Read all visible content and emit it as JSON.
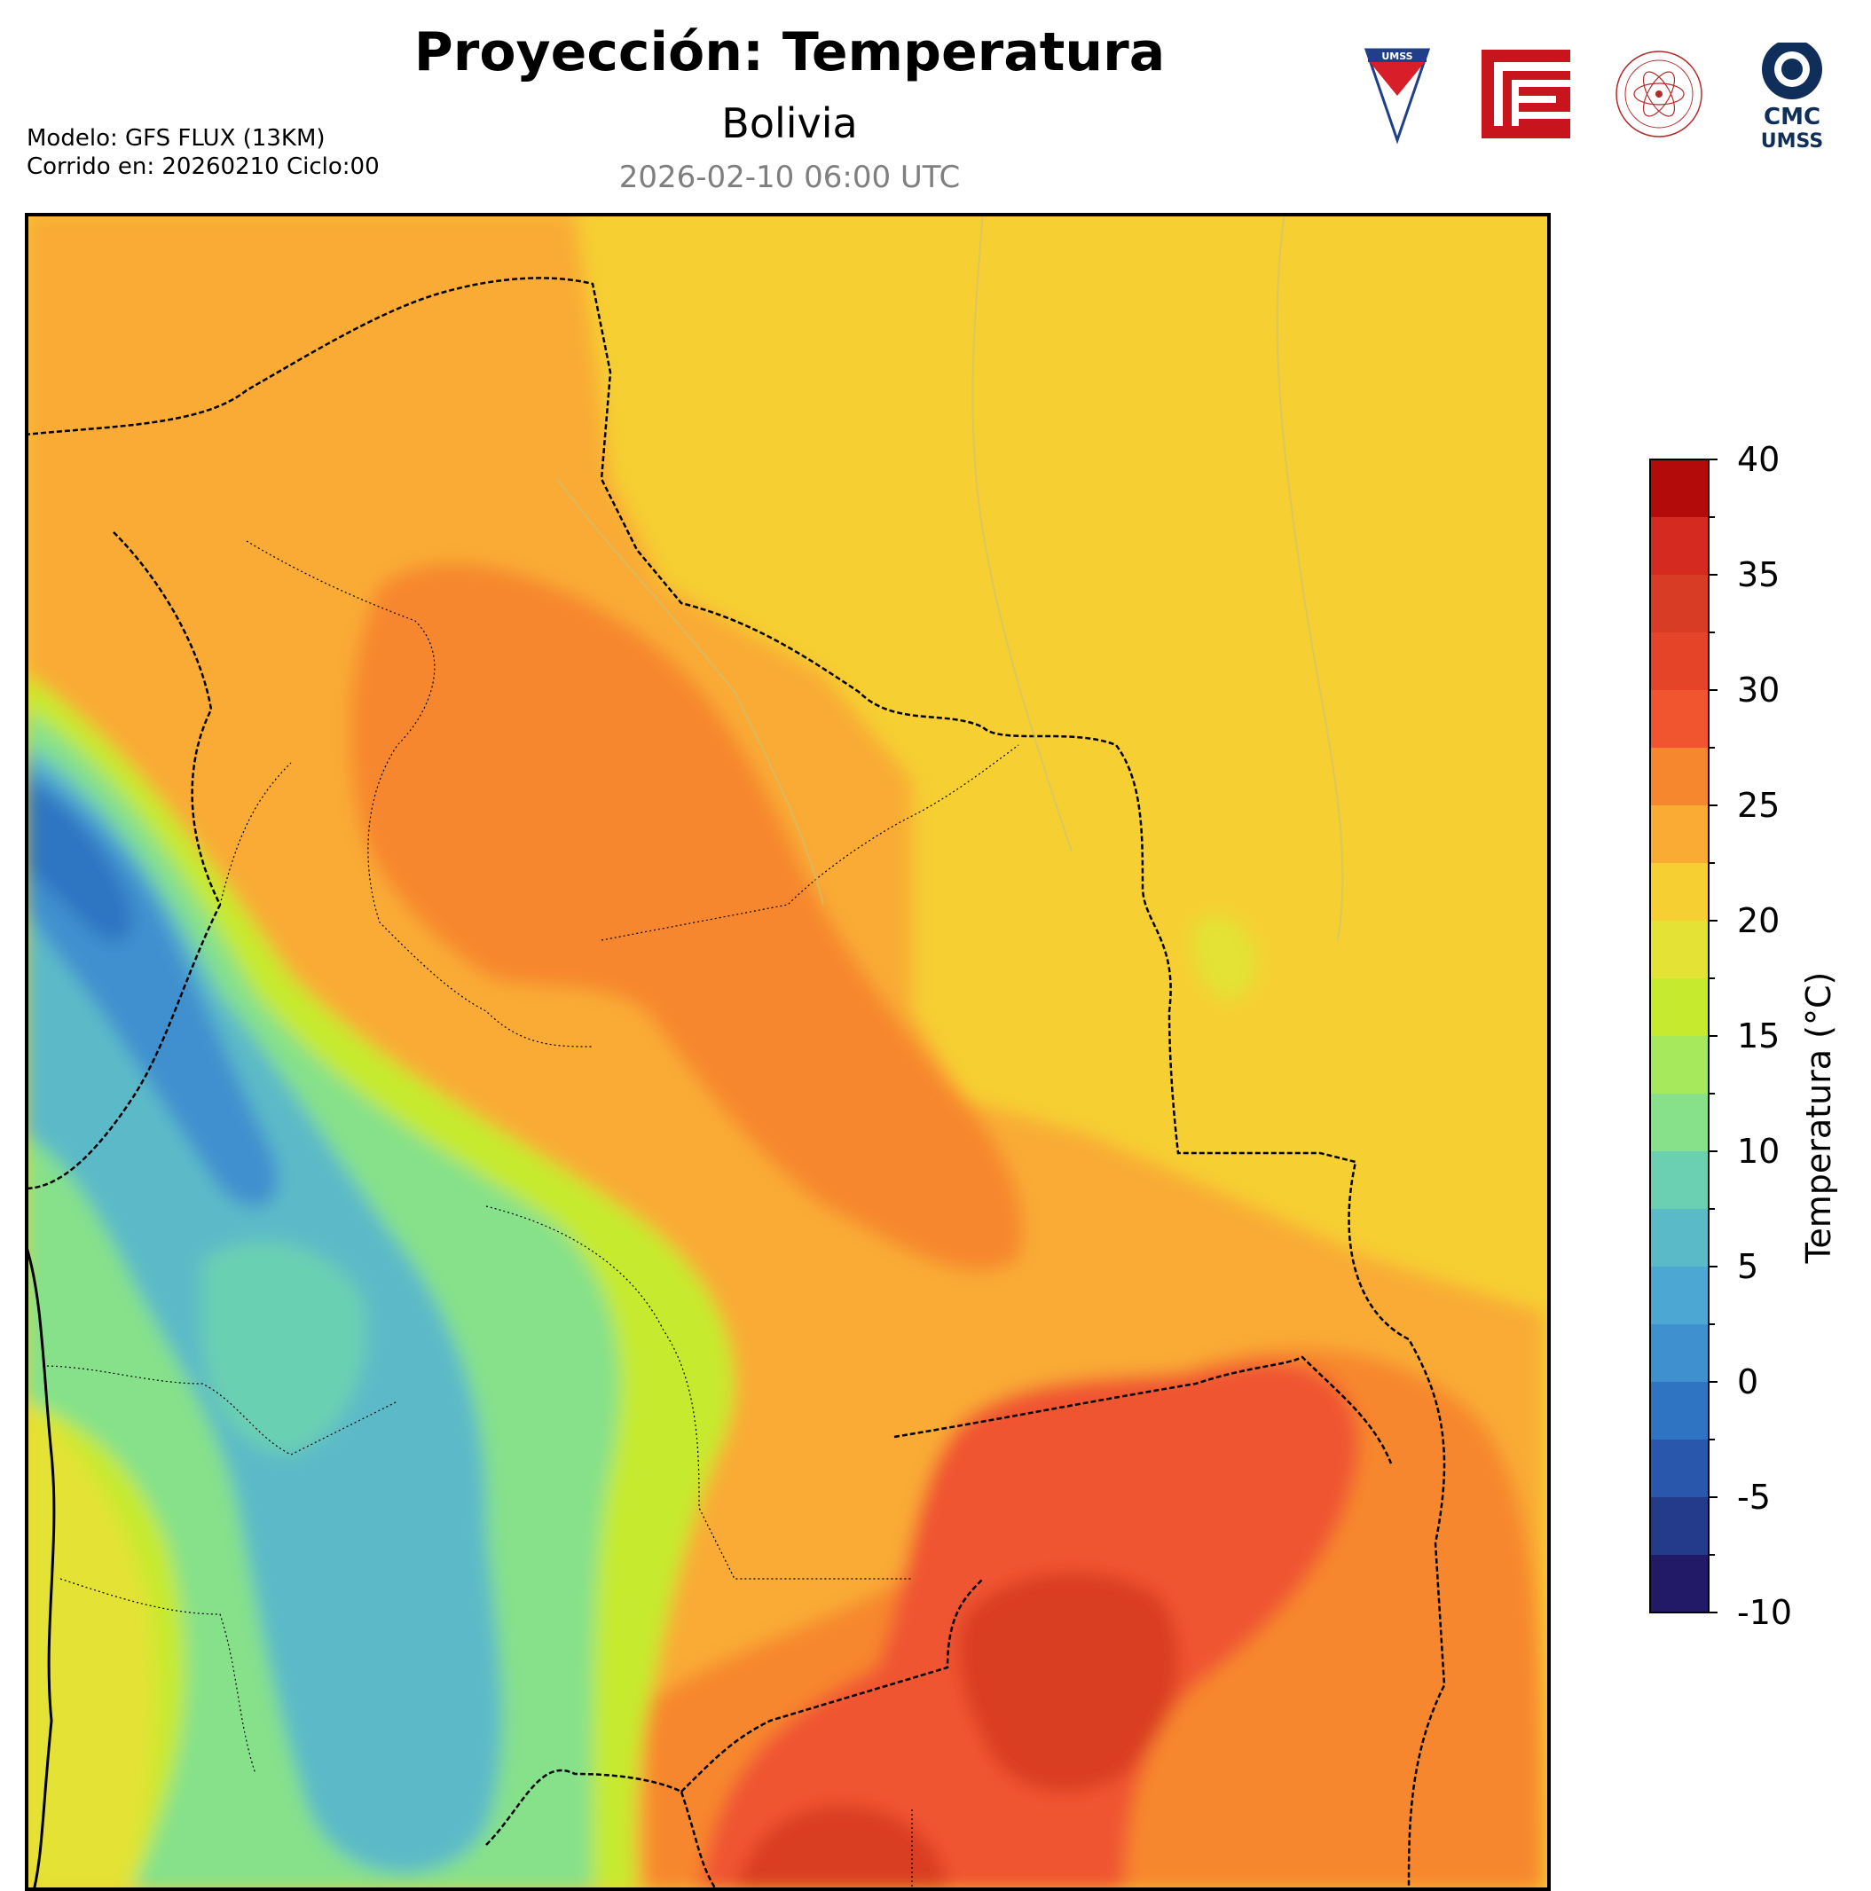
{
  "header": {
    "title": "Proyección: Temperatura",
    "region": "Bolivia",
    "valid_time": "2026-02-10 06:00 UTC",
    "model_line": "Modelo: GFS FLUX (13KM)",
    "run_line": "Corrido en: 20260210 Ciclo:00"
  },
  "logos": {
    "umss_shield_text": "UMSS",
    "cmc_text": "CMC",
    "cmc_sub": "UMSS"
  },
  "colorbar": {
    "label": "Temperatura (°C)",
    "ticks": [
      "40",
      "35",
      "30",
      "25",
      "20",
      "15",
      "10",
      "5",
      "0",
      "-5",
      "-10"
    ],
    "levels": [
      {
        "from": 37.5,
        "color": "#b30a0a"
      },
      {
        "from": 35,
        "color": "#d42a20"
      },
      {
        "from": 32.5,
        "color": "#d93c24"
      },
      {
        "from": 30,
        "color": "#e64428"
      },
      {
        "from": 27.5,
        "color": "#f05530"
      },
      {
        "from": 25,
        "color": "#f7872f"
      },
      {
        "from": 22.5,
        "color": "#f9ab34"
      },
      {
        "from": 20,
        "color": "#f6cf33"
      },
      {
        "from": 17.5,
        "color": "#e3e235"
      },
      {
        "from": 15,
        "color": "#c6ea2e"
      },
      {
        "from": 12.5,
        "color": "#a6e95c"
      },
      {
        "from": 10,
        "color": "#86e18a"
      },
      {
        "from": 7.5,
        "color": "#6bd0b2"
      },
      {
        "from": 5,
        "color": "#5bbac8"
      },
      {
        "from": 2.5,
        "color": "#4ca7d3"
      },
      {
        "from": 0,
        "color": "#3f90cf"
      },
      {
        "from": -2.5,
        "color": "#2f74c2"
      },
      {
        "from": -5,
        "color": "#2857ab"
      },
      {
        "from": -7.5,
        "color": "#243a8a"
      },
      {
        "from": -10,
        "color": "#221a66"
      }
    ],
    "range": [
      -10,
      40
    ]
  }
}
